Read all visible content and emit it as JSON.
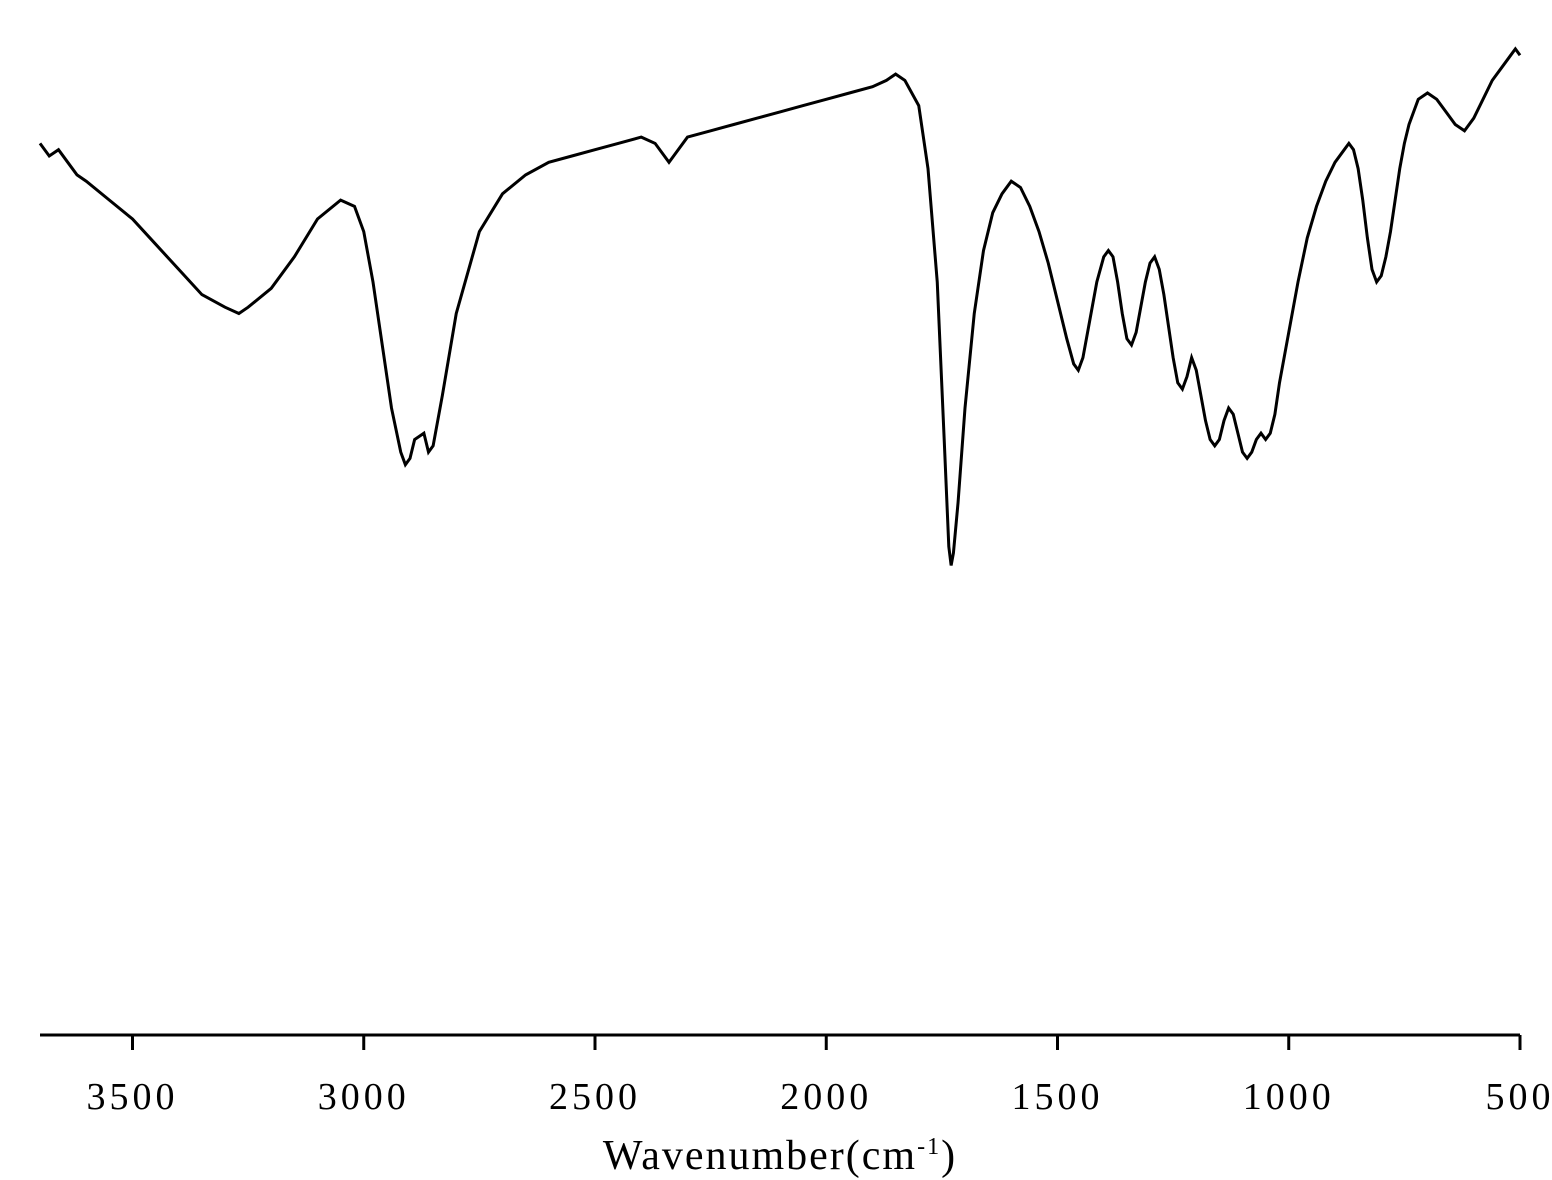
{
  "chart": {
    "type": "line",
    "xlabel": "Wavenumber(cm⁻¹)",
    "label_fontsize": 42,
    "tick_fontsize": 38,
    "background_color": "#ffffff",
    "line_color": "#000000",
    "axis_color": "#000000",
    "line_width": 3,
    "axis_line_width": 3,
    "tick_length": 15,
    "xlim": [
      500,
      3700
    ],
    "x_reversed": true,
    "xticks": [
      3500,
      3000,
      2500,
      2000,
      1500,
      1000,
      500
    ],
    "xtick_labels": [
      "3500",
      "3000",
      "2500",
      "2000",
      "1500",
      "1000",
      "500"
    ],
    "ylim": [
      0,
      100
    ],
    "spectrum_data": [
      {
        "x": 3700,
        "y": 82
      },
      {
        "x": 3680,
        "y": 80
      },
      {
        "x": 3660,
        "y": 81
      },
      {
        "x": 3640,
        "y": 79
      },
      {
        "x": 3620,
        "y": 77
      },
      {
        "x": 3600,
        "y": 76
      },
      {
        "x": 3550,
        "y": 73
      },
      {
        "x": 3500,
        "y": 70
      },
      {
        "x": 3450,
        "y": 66
      },
      {
        "x": 3400,
        "y": 62
      },
      {
        "x": 3350,
        "y": 58
      },
      {
        "x": 3300,
        "y": 56
      },
      {
        "x": 3270,
        "y": 55
      },
      {
        "x": 3250,
        "y": 56
      },
      {
        "x": 3200,
        "y": 59
      },
      {
        "x": 3150,
        "y": 64
      },
      {
        "x": 3100,
        "y": 70
      },
      {
        "x": 3050,
        "y": 73
      },
      {
        "x": 3020,
        "y": 72
      },
      {
        "x": 3000,
        "y": 68
      },
      {
        "x": 2980,
        "y": 60
      },
      {
        "x": 2960,
        "y": 50
      },
      {
        "x": 2940,
        "y": 40
      },
      {
        "x": 2920,
        "y": 33
      },
      {
        "x": 2910,
        "y": 31
      },
      {
        "x": 2900,
        "y": 32
      },
      {
        "x": 2890,
        "y": 35
      },
      {
        "x": 2870,
        "y": 36
      },
      {
        "x": 2860,
        "y": 33
      },
      {
        "x": 2850,
        "y": 34
      },
      {
        "x": 2830,
        "y": 42
      },
      {
        "x": 2800,
        "y": 55
      },
      {
        "x": 2750,
        "y": 68
      },
      {
        "x": 2700,
        "y": 74
      },
      {
        "x": 2650,
        "y": 77
      },
      {
        "x": 2600,
        "y": 79
      },
      {
        "x": 2550,
        "y": 80
      },
      {
        "x": 2500,
        "y": 81
      },
      {
        "x": 2450,
        "y": 82
      },
      {
        "x": 2400,
        "y": 83
      },
      {
        "x": 2370,
        "y": 82
      },
      {
        "x": 2350,
        "y": 80
      },
      {
        "x": 2340,
        "y": 79
      },
      {
        "x": 2330,
        "y": 80
      },
      {
        "x": 2300,
        "y": 83
      },
      {
        "x": 2250,
        "y": 84
      },
      {
        "x": 2200,
        "y": 85
      },
      {
        "x": 2150,
        "y": 86
      },
      {
        "x": 2100,
        "y": 87
      },
      {
        "x": 2050,
        "y": 88
      },
      {
        "x": 2000,
        "y": 89
      },
      {
        "x": 1950,
        "y": 90
      },
      {
        "x": 1900,
        "y": 91
      },
      {
        "x": 1870,
        "y": 92
      },
      {
        "x": 1850,
        "y": 93
      },
      {
        "x": 1830,
        "y": 92
      },
      {
        "x": 1800,
        "y": 88
      },
      {
        "x": 1780,
        "y": 78
      },
      {
        "x": 1760,
        "y": 60
      },
      {
        "x": 1745,
        "y": 35
      },
      {
        "x": 1735,
        "y": 18
      },
      {
        "x": 1730,
        "y": 15
      },
      {
        "x": 1725,
        "y": 17
      },
      {
        "x": 1715,
        "y": 25
      },
      {
        "x": 1700,
        "y": 40
      },
      {
        "x": 1680,
        "y": 55
      },
      {
        "x": 1660,
        "y": 65
      },
      {
        "x": 1640,
        "y": 71
      },
      {
        "x": 1620,
        "y": 74
      },
      {
        "x": 1600,
        "y": 76
      },
      {
        "x": 1580,
        "y": 75
      },
      {
        "x": 1560,
        "y": 72
      },
      {
        "x": 1540,
        "y": 68
      },
      {
        "x": 1520,
        "y": 63
      },
      {
        "x": 1500,
        "y": 57
      },
      {
        "x": 1480,
        "y": 51
      },
      {
        "x": 1465,
        "y": 47
      },
      {
        "x": 1455,
        "y": 46
      },
      {
        "x": 1445,
        "y": 48
      },
      {
        "x": 1430,
        "y": 54
      },
      {
        "x": 1415,
        "y": 60
      },
      {
        "x": 1400,
        "y": 64
      },
      {
        "x": 1390,
        "y": 65
      },
      {
        "x": 1380,
        "y": 64
      },
      {
        "x": 1370,
        "y": 60
      },
      {
        "x": 1360,
        "y": 55
      },
      {
        "x": 1350,
        "y": 51
      },
      {
        "x": 1340,
        "y": 50
      },
      {
        "x": 1330,
        "y": 52
      },
      {
        "x": 1320,
        "y": 56
      },
      {
        "x": 1310,
        "y": 60
      },
      {
        "x": 1300,
        "y": 63
      },
      {
        "x": 1290,
        "y": 64
      },
      {
        "x": 1280,
        "y": 62
      },
      {
        "x": 1270,
        "y": 58
      },
      {
        "x": 1260,
        "y": 53
      },
      {
        "x": 1250,
        "y": 48
      },
      {
        "x": 1240,
        "y": 44
      },
      {
        "x": 1230,
        "y": 43
      },
      {
        "x": 1220,
        "y": 45
      },
      {
        "x": 1210,
        "y": 48
      },
      {
        "x": 1200,
        "y": 46
      },
      {
        "x": 1190,
        "y": 42
      },
      {
        "x": 1180,
        "y": 38
      },
      {
        "x": 1170,
        "y": 35
      },
      {
        "x": 1160,
        "y": 34
      },
      {
        "x": 1150,
        "y": 35
      },
      {
        "x": 1140,
        "y": 38
      },
      {
        "x": 1130,
        "y": 40
      },
      {
        "x": 1120,
        "y": 39
      },
      {
        "x": 1110,
        "y": 36
      },
      {
        "x": 1100,
        "y": 33
      },
      {
        "x": 1090,
        "y": 32
      },
      {
        "x": 1080,
        "y": 33
      },
      {
        "x": 1070,
        "y": 35
      },
      {
        "x": 1060,
        "y": 36
      },
      {
        "x": 1050,
        "y": 35
      },
      {
        "x": 1040,
        "y": 36
      },
      {
        "x": 1030,
        "y": 39
      },
      {
        "x": 1020,
        "y": 44
      },
      {
        "x": 1000,
        "y": 52
      },
      {
        "x": 980,
        "y": 60
      },
      {
        "x": 960,
        "y": 67
      },
      {
        "x": 940,
        "y": 72
      },
      {
        "x": 920,
        "y": 76
      },
      {
        "x": 900,
        "y": 79
      },
      {
        "x": 880,
        "y": 81
      },
      {
        "x": 870,
        "y": 82
      },
      {
        "x": 860,
        "y": 81
      },
      {
        "x": 850,
        "y": 78
      },
      {
        "x": 840,
        "y": 73
      },
      {
        "x": 830,
        "y": 67
      },
      {
        "x": 820,
        "y": 62
      },
      {
        "x": 810,
        "y": 60
      },
      {
        "x": 800,
        "y": 61
      },
      {
        "x": 790,
        "y": 64
      },
      {
        "x": 780,
        "y": 68
      },
      {
        "x": 770,
        "y": 73
      },
      {
        "x": 760,
        "y": 78
      },
      {
        "x": 750,
        "y": 82
      },
      {
        "x": 740,
        "y": 85
      },
      {
        "x": 730,
        "y": 87
      },
      {
        "x": 720,
        "y": 89
      },
      {
        "x": 700,
        "y": 90
      },
      {
        "x": 680,
        "y": 89
      },
      {
        "x": 660,
        "y": 87
      },
      {
        "x": 640,
        "y": 85
      },
      {
        "x": 620,
        "y": 84
      },
      {
        "x": 600,
        "y": 86
      },
      {
        "x": 580,
        "y": 89
      },
      {
        "x": 560,
        "y": 92
      },
      {
        "x": 540,
        "y": 94
      },
      {
        "x": 520,
        "y": 96
      },
      {
        "x": 510,
        "y": 97
      },
      {
        "x": 500,
        "y": 96
      }
    ]
  }
}
